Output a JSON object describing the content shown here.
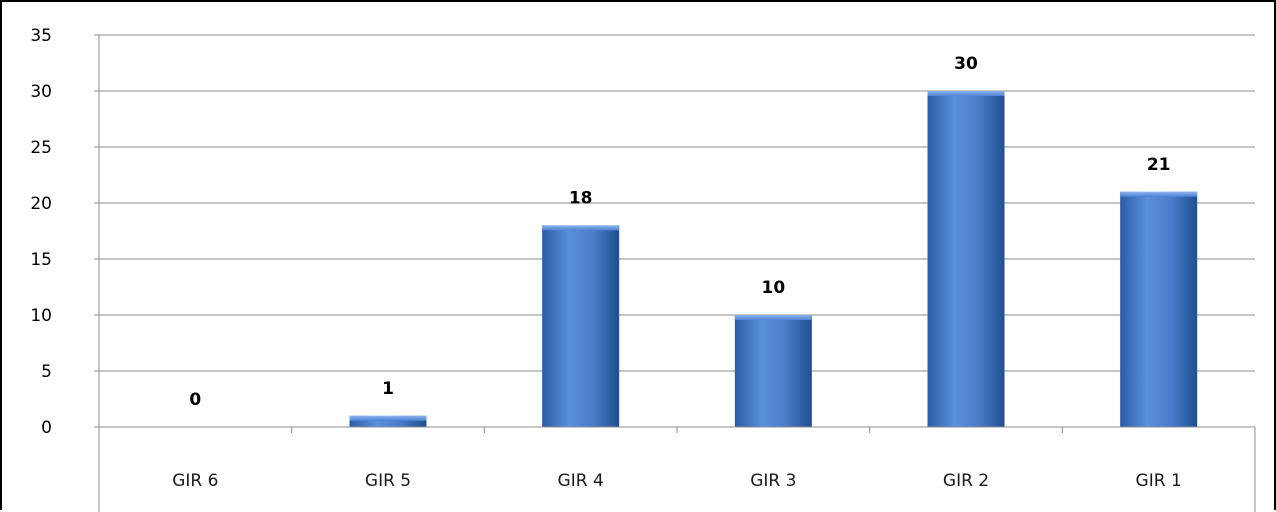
{
  "chart_data": {
    "type": "bar",
    "categories": [
      "GIR 6",
      "GIR 5",
      "GIR 4",
      "GIR 3",
      "GIR 2",
      "GIR 1"
    ],
    "values": [
      0,
      1,
      18,
      10,
      30,
      21
    ],
    "title": "",
    "xlabel": "",
    "ylabel": "",
    "ylim": [
      0,
      35
    ],
    "yticks": [
      0,
      5,
      10,
      15,
      20,
      25,
      30,
      35
    ],
    "grid": true,
    "legend": "none",
    "data_labels": true
  },
  "colors": {
    "bar_light": "#6c9be0",
    "bar_mid": "#3f74c4",
    "bar_dark": "#22508f",
    "grid": "#8c8c8c",
    "axis": "#8c8c8c",
    "text": "#000000"
  }
}
